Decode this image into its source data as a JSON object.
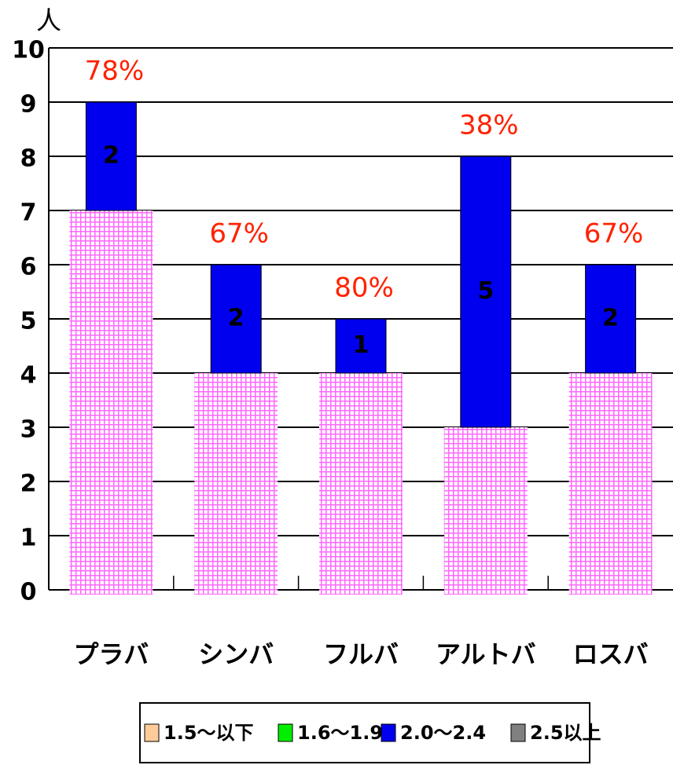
{
  "chart_data": {
    "type": "stacked_bar",
    "y_label": "人",
    "categories": [
      "プラバ",
      "シンバ",
      "フルバ",
      "アルトバ",
      "ロスバ"
    ],
    "series": [
      {
        "name": "1.5～以下",
        "color": "#ffcc99",
        "hatch_color": "#ff66ff",
        "values": [
          7,
          4,
          4,
          3,
          4
        ]
      },
      {
        "name": "1.6～1.9",
        "color": "#00ee00",
        "values": [
          0,
          0,
          0,
          0,
          0
        ]
      },
      {
        "name": "2.0～2.4",
        "color": "#0000ee",
        "values": [
          2,
          2,
          1,
          5,
          2
        ],
        "labels": true
      },
      {
        "name": "2.5以上",
        "color": "#808080",
        "values": [
          0,
          0,
          0,
          0,
          0
        ]
      }
    ],
    "annotations": [
      "78%",
      "67%",
      "80%",
      "38%",
      "67%"
    ],
    "ylim": [
      0,
      10
    ],
    "yticks": [
      0,
      1,
      2,
      3,
      4,
      5,
      6,
      7,
      8,
      9,
      10
    ],
    "grid": true
  }
}
